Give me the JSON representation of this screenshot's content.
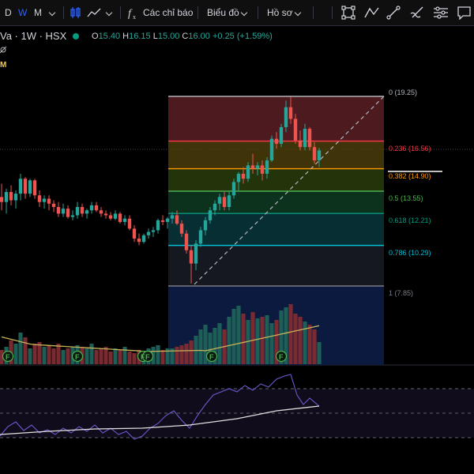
{
  "toolbar": {
    "intervals": [
      "D",
      "W",
      "M"
    ],
    "active_interval": "W",
    "indicators_label": "Các chỉ báo",
    "charts_label": "Biểu đồ",
    "profile_label": "Hồ sơ"
  },
  "legend": {
    "symbol": "Va · 1W · HSX",
    "o_label": "O",
    "o_value": "15.40",
    "h_label": "H",
    "h_value": "16.15",
    "l_label": "L",
    "l_value": "15.00",
    "c_label": "C",
    "c_value": "16.00",
    "change": "+0.25 (+1.59%)",
    "sub_label": "M"
  },
  "fib_levels": [
    {
      "label": "0 (19.25)",
      "price": 19.25,
      "color": "#b2b5be",
      "fill": "#5a1f25"
    },
    {
      "label": "0.236 (16.56)",
      "price": 16.56,
      "color": "#f23645",
      "fill": "#4a3d0a"
    },
    {
      "label": "0.382 (14.90)",
      "price": 14.9,
      "color": "#ff9800",
      "fill": "#2a3d0c"
    },
    {
      "label": "0.5 (13.55)",
      "price": 13.55,
      "color": "#4caf50",
      "fill": "#0e3a22"
    },
    {
      "label": "0.618 (12.21)",
      "price": 12.21,
      "color": "#089981",
      "fill": "#08373c"
    },
    {
      "label": "0.786 (10.29)",
      "price": 10.29,
      "color": "#00bcd4",
      "fill": "#1a1c24"
    },
    {
      "label": "1 (7.85)",
      "price": 7.85,
      "color": "#787b86",
      "fill": "#0d1a40"
    }
  ],
  "dividend_markers": [
    "F",
    "F",
    "F",
    "F",
    "F",
    "F"
  ],
  "colors": {
    "up": "#26a69a",
    "down": "#ef5350",
    "accent": "#2962ff",
    "ma": "#c9b458",
    "rsi": "#7e57c2"
  }
}
